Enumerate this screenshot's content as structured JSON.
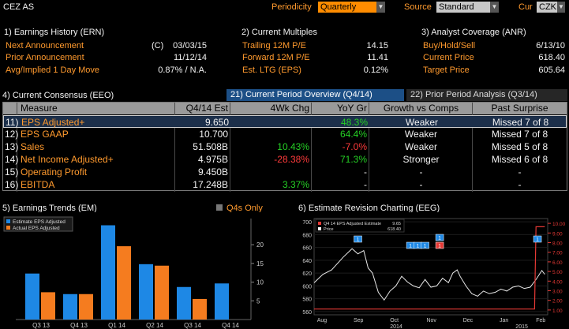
{
  "top_bar": {
    "ticker": "CEZ AS",
    "periodicity_label": "Periodicity",
    "periodicity_value": "Quarterly",
    "source_label": "Source",
    "source_value": "Standard",
    "currency_label": "Cur",
    "currency_value": "CZK"
  },
  "earnings_history": {
    "title": "1) Earnings History (ERN)",
    "rows": [
      {
        "label": "Next Announcement",
        "prefix": "(C)",
        "value": "03/03/15"
      },
      {
        "label": "Prior Announcement",
        "prefix": "",
        "value": "11/12/14"
      },
      {
        "label": "Avg/Implied 1 Day Move",
        "prefix": "",
        "value": "0.87% / N.A."
      }
    ]
  },
  "current_multiples": {
    "title": "2) Current Multiples",
    "rows": [
      {
        "label": "Trailing 12M P/E",
        "value": "14.15"
      },
      {
        "label": "Forward 12M P/E",
        "value": "11.41"
      },
      {
        "label": "Est. LTG (EPS)",
        "value": "0.12%"
      }
    ]
  },
  "analyst_coverage": {
    "title": "3) Analyst Coverage (ANR)",
    "rows": [
      {
        "label": "Buy/Hold/Sell",
        "value": "6/13/10"
      },
      {
        "label": "Current Price",
        "value": "618.40"
      },
      {
        "label": "Target Price",
        "value": "605.64"
      }
    ]
  },
  "consensus": {
    "title": "4) Current Consensus (EEO)",
    "tab_current": "21) Current Period Overview (Q4/14)",
    "tab_prior": "22) Prior Period Analysis (Q3/14)",
    "headers": [
      "Measure",
      "Q4/14 Est",
      "4Wk Chg",
      "YoY Gr",
      "Growth vs Comps",
      "Past Surprise"
    ],
    "rows": [
      {
        "num": "11)",
        "measure": "EPS Adjusted+",
        "est": "9.650",
        "chg": "",
        "chg_color": "green",
        "yoy": "48.3%",
        "yoy_color": "green",
        "growth": "Weaker",
        "surprise": "Missed 7 of 8"
      },
      {
        "num": "12)",
        "measure": "EPS GAAP",
        "est": "10.700",
        "chg": "",
        "chg_color": "green",
        "yoy": "64.4%",
        "yoy_color": "green",
        "growth": "Weaker",
        "surprise": "Missed 7 of 8"
      },
      {
        "num": "13)",
        "measure": "Sales",
        "est": "51.508B",
        "chg": "10.43%",
        "chg_color": "green",
        "yoy": "-7.0%",
        "yoy_color": "red",
        "growth": "Weaker",
        "surprise": "Missed 5 of 8"
      },
      {
        "num": "14)",
        "measure": "Net Income Adjusted+",
        "est": "4.975B",
        "chg": "-28.38%",
        "chg_color": "red",
        "yoy": "71.3%",
        "yoy_color": "green",
        "growth": "Stronger",
        "surprise": "Missed 6 of 8"
      },
      {
        "num": "15)",
        "measure": "Operating Profit",
        "est": "9.450B",
        "chg": "",
        "chg_color": "green",
        "yoy": "-",
        "yoy_color": "white",
        "growth": "-",
        "surprise": "-"
      },
      {
        "num": "16)",
        "measure": "EBITDA",
        "est": "17.248B",
        "chg": "3.37%",
        "chg_color": "green",
        "yoy": "-",
        "yoy_color": "white",
        "growth": "-",
        "surprise": "-"
      }
    ]
  },
  "earnings_trends": {
    "title": "5) Earnings Trends (EM)",
    "toggle_label": "Q4s Only",
    "chart_data": {
      "type": "bar",
      "categories": [
        "Q3 13",
        "Q4 13",
        "Q1 14",
        "Q2 14",
        "Q3 14",
        "Q4 14"
      ],
      "series": [
        {
          "name": "Estimate EPS Adjusted",
          "color": "#1e88e5",
          "values": [
            12.3,
            6.8,
            25.2,
            14.8,
            8.7,
            9.65
          ]
        },
        {
          "name": "Actual EPS Adjusted",
          "color": "#f57c1f",
          "values": [
            7.3,
            6.8,
            19.6,
            14.4,
            5.5,
            null
          ]
        }
      ],
      "ylim": [
        0,
        25
      ],
      "yticks": [
        "5",
        "10",
        "15",
        "20"
      ]
    }
  },
  "revision_chart": {
    "title": "6) Estimate Revision Charting (EEG)",
    "chart_data": {
      "type": "line",
      "legend": [
        {
          "name": "Q4 14 EPS Adjusted Estimate",
          "value": "9.65",
          "color": "#e53935"
        },
        {
          "name": "Price",
          "value": "618.40",
          "color": "#ffffff"
        }
      ],
      "x_labels": [
        "Aug",
        "Sep",
        "Oct",
        "Nov",
        "Dec",
        "Jan",
        "Feb"
      ],
      "x_year_labels": [
        "2014",
        "2015"
      ],
      "price_yticks": [
        "700",
        "680",
        "660",
        "640",
        "620",
        "600",
        "580",
        "560"
      ],
      "estimate_yticks": [
        "10.00",
        "9.00",
        "8.00",
        "7.00",
        "6.00",
        "5.00",
        "4.00",
        "3.00",
        "2.00",
        "1.00"
      ],
      "price_ylim": [
        555,
        705
      ],
      "estimate_ylim": [
        0.5,
        10.5
      ],
      "price_series": [
        [
          0,
          605
        ],
        [
          0.3,
          618
        ],
        [
          0.6,
          625
        ],
        [
          1.0,
          645
        ],
        [
          1.3,
          658
        ],
        [
          1.5,
          650
        ],
        [
          1.7,
          655
        ],
        [
          1.85,
          628
        ],
        [
          2.0,
          620
        ],
        [
          2.2,
          590
        ],
        [
          2.4,
          578
        ],
        [
          2.6,
          592
        ],
        [
          2.8,
          600
        ],
        [
          3.0,
          615
        ],
        [
          3.2,
          606
        ],
        [
          3.4,
          600
        ],
        [
          3.6,
          597
        ],
        [
          3.8,
          610
        ],
        [
          4.0,
          598
        ],
        [
          4.2,
          600
        ],
        [
          4.4,
          612
        ],
        [
          4.6,
          605
        ],
        [
          4.75,
          620
        ],
        [
          4.9,
          625
        ],
        [
          5.0,
          615
        ],
        [
          5.2,
          600
        ],
        [
          5.4,
          588
        ],
        [
          5.6,
          584
        ],
        [
          5.8,
          592
        ],
        [
          6.0,
          588
        ],
        [
          6.2,
          590
        ],
        [
          6.4,
          595
        ],
        [
          6.6,
          592
        ],
        [
          6.8,
          598
        ],
        [
          7.0,
          600
        ],
        [
          7.2,
          596
        ],
        [
          7.4,
          598
        ],
        [
          7.6,
          610
        ],
        [
          7.8,
          624
        ],
        [
          7.9,
          618
        ]
      ],
      "estimate_series": [
        [
          0,
          1.1
        ],
        [
          7.55,
          1.1
        ],
        [
          7.6,
          9.65
        ],
        [
          7.9,
          9.65
        ]
      ],
      "markers": [
        {
          "x": 1.5,
          "label": "1",
          "color": "#1e88e5"
        },
        {
          "x": 3.3,
          "label": "1",
          "color": "#1e88e5"
        },
        {
          "x": 3.55,
          "label": "1",
          "color": "#1e88e5"
        },
        {
          "x": 3.8,
          "label": "1",
          "color": "#1e88e5"
        },
        {
          "x": 4.3,
          "label": "1",
          "color": "#1e88e5"
        },
        {
          "x": 4.3,
          "label": "1",
          "color": "#e53935"
        },
        {
          "x": 7.65,
          "label": "1",
          "color": "#1e88e5"
        }
      ]
    }
  }
}
